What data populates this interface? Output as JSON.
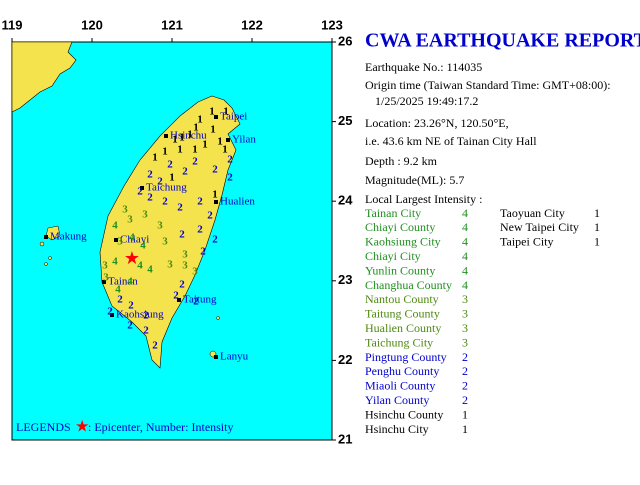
{
  "map": {
    "lonlim": [
      119,
      123
    ],
    "latlim": [
      26,
      21
    ],
    "lon_ticks": [
      119,
      120,
      121,
      122,
      123
    ],
    "lat_ticks": [
      26,
      25,
      24,
      23,
      22,
      21
    ],
    "places": [
      "Taipei",
      "Hsinchu",
      "Yilan",
      "Taichung",
      "Hualien",
      "Makung",
      "Chiayi",
      "Tainan",
      "Taitung",
      "Kaohsiung",
      "Lanyu"
    ],
    "epicenter": {
      "lon": 120.5,
      "lat": 23.26
    },
    "stations": [
      1,
      1,
      1,
      1,
      1,
      1,
      1,
      1,
      1,
      1,
      2,
      1,
      1,
      1,
      1,
      2,
      1,
      2,
      2,
      1,
      2,
      2,
      2,
      2,
      2,
      2,
      2,
      2,
      2,
      1,
      2,
      3,
      4,
      3,
      3,
      3,
      2,
      2,
      2,
      3,
      4,
      4,
      3,
      3,
      2,
      3,
      4,
      4,
      4,
      3,
      3,
      3,
      3,
      4,
      4,
      2,
      2,
      2,
      2,
      2,
      2,
      2,
      2,
      2,
      2
    ],
    "intensity_colors": {
      "1": "#000000",
      "2": "#0000cc",
      "3": "#4f8a10",
      "4": "#1f8f1f"
    }
  },
  "report": {
    "title": "CWA EARTHQUAKE REPORT",
    "number": "Earthquake No.: 114035",
    "origin": "Origin time (Taiwan Standard Time: GMT+08:00):",
    "date": "1/25/2025 19:49:17.2",
    "location": "Location: 23.26°N, 120.50°E,",
    "distance": "i.e. 43.6 km NE of Tainan City Hall",
    "depth": "Depth :  9.2 km",
    "magnitude": "Magnitude(ML): 5.7",
    "intensity_title": "Local Largest Intensity :",
    "areas": [
      {
        "name": "Tainan City",
        "intensity": 4
      },
      {
        "name": "Chiayi County",
        "intensity": 4
      },
      {
        "name": "Kaohsiung City",
        "intensity": 4
      },
      {
        "name": "Chiayi City",
        "intensity": 4
      },
      {
        "name": "Yunlin County",
        "intensity": 4
      },
      {
        "name": "Changhua County",
        "intensity": 4
      },
      {
        "name": "Nantou County",
        "intensity": 3
      },
      {
        "name": "Taitung County",
        "intensity": 3
      },
      {
        "name": "Hualien County",
        "intensity": 3
      },
      {
        "name": "Taichung City",
        "intensity": 3
      },
      {
        "name": "Pingtung County",
        "intensity": 2
      },
      {
        "name": "Penghu County",
        "intensity": 2
      },
      {
        "name": "Miaoli County",
        "intensity": 2
      },
      {
        "name": "Yilan County",
        "intensity": 2
      },
      {
        "name": "Hsinchu County",
        "intensity": 1
      },
      {
        "name": "Hsinchu City",
        "intensity": 1
      },
      {
        "name": "Taoyuan City",
        "intensity": 1
      },
      {
        "name": "New Taipei City",
        "intensity": 1
      },
      {
        "name": "Taipei City",
        "intensity": 1
      }
    ]
  },
  "legend": {
    "label": "LEGENDS",
    "text": ": Epicenter, Number: Intensity"
  }
}
